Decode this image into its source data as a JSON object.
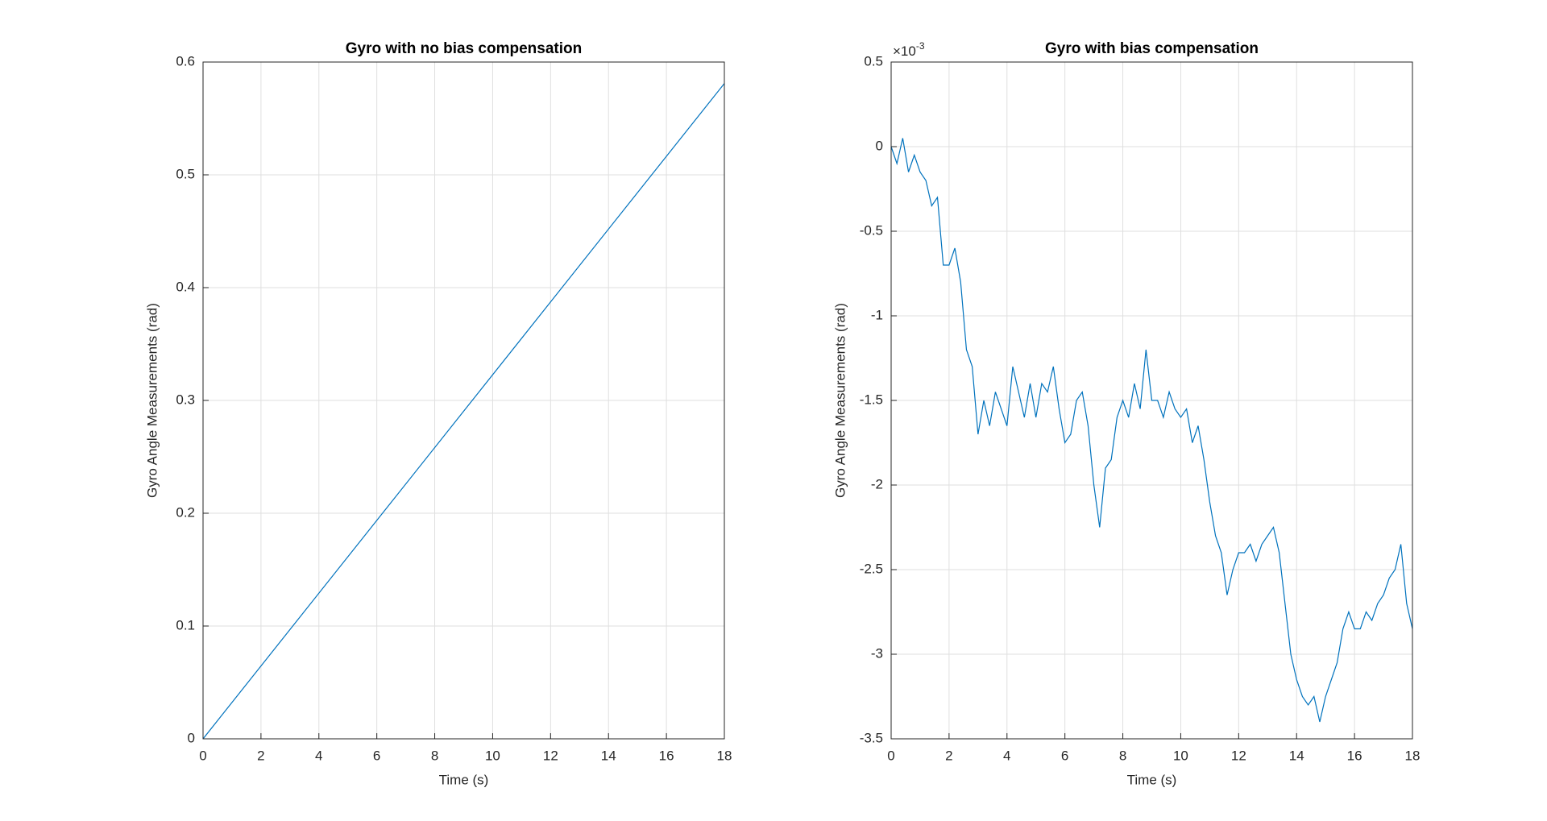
{
  "chart_data": [
    {
      "type": "line",
      "title": "Gyro with no bias compensation",
      "x_label": "Time (s)",
      "y_label": "Gyro Angle Measurements (rad)",
      "xlim": [
        0,
        18
      ],
      "ylim": [
        0,
        0.6
      ],
      "xticks": [
        0,
        2,
        4,
        6,
        8,
        10,
        12,
        14,
        16,
        18
      ],
      "yticks": [
        0,
        0.1,
        0.2,
        0.3,
        0.4,
        0.5,
        0.6
      ],
      "grid": true,
      "color": "#0072bd",
      "x": [
        0,
        18
      ],
      "values": [
        0,
        0.581
      ]
    },
    {
      "type": "line",
      "title": "Gyro with bias compensation",
      "x_label": "Time (s)",
      "y_label": "Gyro Angle Measurements (rad)",
      "y_exponent_label": {
        "base": "×10",
        "exponent": "-3"
      },
      "xlim": [
        0,
        18
      ],
      "ylim": [
        -3.5,
        0.5
      ],
      "xticks": [
        0,
        2,
        4,
        6,
        8,
        10,
        12,
        14,
        16,
        18
      ],
      "yticks": [
        -3.5,
        -3,
        -2.5,
        -2,
        -1.5,
        -1,
        -0.5,
        0,
        0.5
      ],
      "grid": true,
      "color": "#0072bd",
      "x": [
        0,
        0.2,
        0.4,
        0.6,
        0.8,
        1,
        1.2,
        1.4,
        1.6,
        1.8,
        2,
        2.2,
        2.4,
        2.6,
        2.8,
        3,
        3.2,
        3.4,
        3.6,
        3.8,
        4,
        4.2,
        4.4,
        4.6,
        4.8,
        5,
        5.2,
        5.4,
        5.6,
        5.8,
        6,
        6.2,
        6.4,
        6.6,
        6.8,
        7,
        7.2,
        7.4,
        7.6,
        7.8,
        8,
        8.2,
        8.4,
        8.6,
        8.8,
        9,
        9.2,
        9.4,
        9.6,
        9.8,
        10,
        10.2,
        10.4,
        10.6,
        10.8,
        11,
        11.2,
        11.4,
        11.6,
        11.8,
        12,
        12.2,
        12.4,
        12.6,
        12.8,
        13,
        13.2,
        13.4,
        13.6,
        13.8,
        14,
        14.2,
        14.4,
        14.6,
        14.8,
        15,
        15.2,
        15.4,
        15.6,
        15.8,
        16,
        16.2,
        16.4,
        16.6,
        16.8,
        17,
        17.2,
        17.4,
        17.6,
        17.8,
        18
      ],
      "values": [
        0,
        -0.1,
        0.05,
        -0.15,
        -0.05,
        -0.15,
        -0.2,
        -0.35,
        -0.3,
        -0.7,
        -0.7,
        -0.6,
        -0.8,
        -1.2,
        -1.3,
        -1.7,
        -1.5,
        -1.65,
        -1.45,
        -1.55,
        -1.65,
        -1.3,
        -1.45,
        -1.6,
        -1.4,
        -1.6,
        -1.4,
        -1.45,
        -1.3,
        -1.55,
        -1.75,
        -1.7,
        -1.5,
        -1.45,
        -1.65,
        -2,
        -2.25,
        -1.9,
        -1.85,
        -1.6,
        -1.5,
        -1.6,
        -1.4,
        -1.55,
        -1.2,
        -1.5,
        -1.5,
        -1.6,
        -1.45,
        -1.55,
        -1.6,
        -1.55,
        -1.75,
        -1.65,
        -1.85,
        -2.1,
        -2.3,
        -2.4,
        -2.65,
        -2.5,
        -2.4,
        -2.4,
        -2.35,
        -2.45,
        -2.35,
        -2.3,
        -2.25,
        -2.4,
        -2.7,
        -3,
        -3.15,
        -3.25,
        -3.3,
        -3.25,
        -3.4,
        -3.25,
        -3.15,
        -3.05,
        -2.85,
        -2.75,
        -2.85,
        -2.85,
        -2.75,
        -2.8,
        -2.7,
        -2.65,
        -2.55,
        -2.5,
        -2.35,
        -2.7,
        -2.85
      ]
    }
  ]
}
